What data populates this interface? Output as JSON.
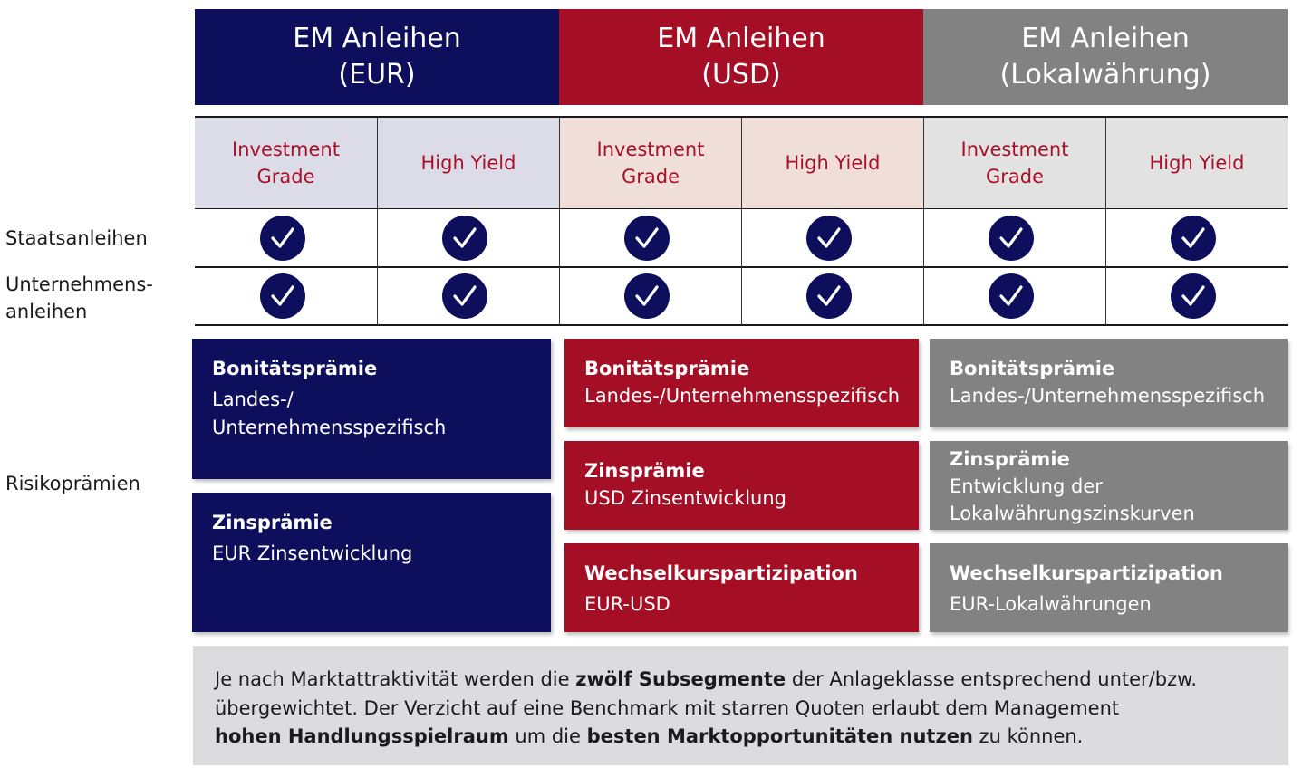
{
  "columns": [
    {
      "title_line1": "EM Anleihen",
      "title_line2": "(EUR)",
      "color": "#0d0f5c"
    },
    {
      "title_line1": "EM Anleihen",
      "title_line2": "(USD)",
      "color": "#a50f26"
    },
    {
      "title_line1": "EM Anleihen",
      "title_line2": "(Lokalwährung)",
      "color": "#828283"
    }
  ],
  "subheaders": [
    {
      "label": "Investment\nGrade",
      "bg": "#dcdce8"
    },
    {
      "label": "High Yield",
      "bg": "#dcdce8"
    },
    {
      "label": "Investment\nGrade",
      "bg": "#f0dfd9"
    },
    {
      "label": "High Yield",
      "bg": "#f0dfd9"
    },
    {
      "label": "Investment\nGrade",
      "bg": "#e2e2e3"
    },
    {
      "label": "High Yield",
      "bg": "#e2e2e3"
    }
  ],
  "row_labels": {
    "staats": "Staatsanleihen",
    "unternehmen_line1": "Unternehmens-",
    "unternehmen_line2": "anleihen",
    "risiko": "Risikoprämien"
  },
  "premiums": {
    "eur": [
      {
        "title": "Bonitätsprämie",
        "desc": "Landes-/\nUnternehmensspezifisch"
      },
      {
        "title": "Zinsprämie",
        "desc": "EUR Zinsentwicklung"
      }
    ],
    "usd": [
      {
        "title": "Bonitätsprämie",
        "desc": "Landes-/Unternehmensspezifisch"
      },
      {
        "title": "Zinsprämie",
        "desc": "USD Zinsentwicklung"
      },
      {
        "title": "Wechselkurspartizipation",
        "desc": "EUR-USD"
      }
    ],
    "local": [
      {
        "title": "Bonitätsprämie",
        "desc": "Landes-/Unternehmensspezifisch"
      },
      {
        "title": "Zinsprämie",
        "desc": "Entwicklung der\nLokalwährungszinskurven"
      },
      {
        "title": "Wechselkurspartizipation",
        "desc": "EUR-Lokalwährungen"
      }
    ]
  },
  "note": {
    "s1": "Je nach Marktattraktivität werden die ",
    "b1": "zwölf Subsegmente",
    "s2": " der Anlageklasse entsprechend unter/bzw.",
    "s3": "übergewichtet. Der Verzicht auf eine Benchmark mit starren Quoten erlaubt dem Management",
    "b2": "hohen Handlungsspielraum",
    "s4": " um die ",
    "b3": "besten Marktopportunitäten nutzen",
    "s5": " zu können."
  }
}
